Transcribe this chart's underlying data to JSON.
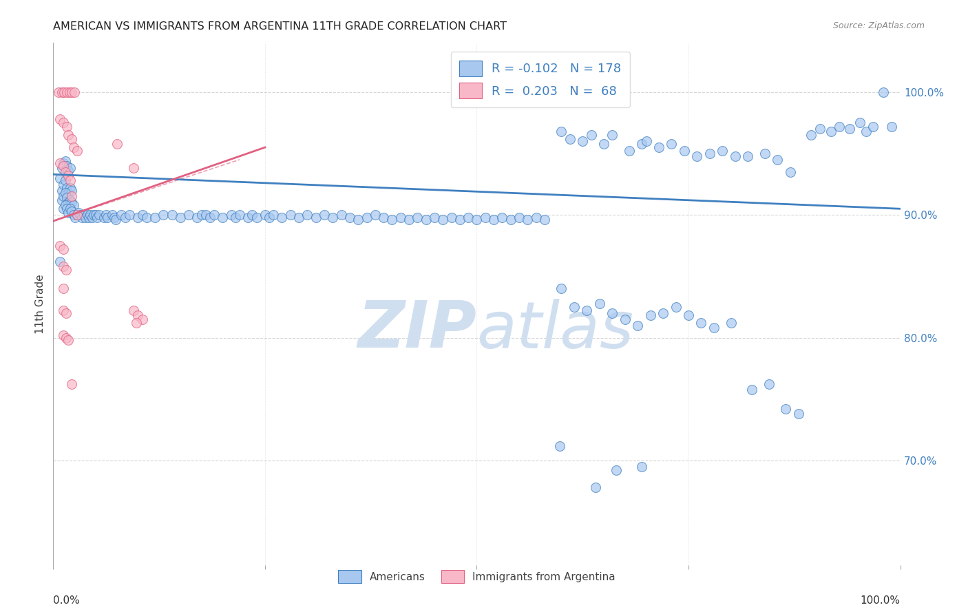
{
  "title": "AMERICAN VS IMMIGRANTS FROM ARGENTINA 11TH GRADE CORRELATION CHART",
  "source": "Source: ZipAtlas.com",
  "ylabel": "11th Grade",
  "r_american": -0.102,
  "n_american": 178,
  "r_argentina": 0.203,
  "n_argentina": 68,
  "ytick_labels": [
    "100.0%",
    "90.0%",
    "80.0%",
    "70.0%"
  ],
  "ytick_values": [
    1.0,
    0.9,
    0.8,
    0.7
  ],
  "xlim": [
    0.0,
    1.0
  ],
  "ylim": [
    0.615,
    1.04
  ],
  "background_color": "#ffffff",
  "blue_color": "#a8c8f0",
  "pink_color": "#f8b8c8",
  "blue_line_color": "#4080c0",
  "pink_line_color": "#e06080",
  "watermark_color": "#d0dff0",
  "grid_color": "#cccccc",
  "legend_r_color": "#4080c0",
  "blue_trend": [
    0.0,
    1.0,
    0.933,
    0.905
  ],
  "pink_trend": [
    0.0,
    0.25,
    0.895,
    0.955
  ],
  "pink_trend_dashed": [
    0.0,
    0.22,
    0.895,
    0.945
  ],
  "blue_scatter": [
    [
      0.008,
      0.93
    ],
    [
      0.01,
      0.938
    ],
    [
      0.012,
      0.942
    ],
    [
      0.014,
      0.944
    ],
    [
      0.016,
      0.94
    ],
    [
      0.018,
      0.936
    ],
    [
      0.02,
      0.938
    ],
    [
      0.01,
      0.92
    ],
    [
      0.012,
      0.925
    ],
    [
      0.014,
      0.928
    ],
    [
      0.016,
      0.922
    ],
    [
      0.018,
      0.918
    ],
    [
      0.02,
      0.922
    ],
    [
      0.022,
      0.92
    ],
    [
      0.01,
      0.912
    ],
    [
      0.012,
      0.915
    ],
    [
      0.014,
      0.918
    ],
    [
      0.016,
      0.914
    ],
    [
      0.018,
      0.91
    ],
    [
      0.02,
      0.912
    ],
    [
      0.022,
      0.91
    ],
    [
      0.024,
      0.908
    ],
    [
      0.012,
      0.905
    ],
    [
      0.014,
      0.908
    ],
    [
      0.016,
      0.905
    ],
    [
      0.018,
      0.902
    ],
    [
      0.02,
      0.905
    ],
    [
      0.022,
      0.903
    ],
    [
      0.024,
      0.9
    ],
    [
      0.026,
      0.898
    ],
    [
      0.028,
      0.9
    ],
    [
      0.03,
      0.902
    ],
    [
      0.032,
      0.9
    ],
    [
      0.034,
      0.898
    ],
    [
      0.036,
      0.9
    ],
    [
      0.038,
      0.898
    ],
    [
      0.04,
      0.9
    ],
    [
      0.042,
      0.898
    ],
    [
      0.044,
      0.9
    ],
    [
      0.046,
      0.898
    ],
    [
      0.048,
      0.9
    ],
    [
      0.05,
      0.9
    ],
    [
      0.052,
      0.898
    ],
    [
      0.054,
      0.9
    ],
    [
      0.06,
      0.898
    ],
    [
      0.062,
      0.9
    ],
    [
      0.064,
      0.898
    ],
    [
      0.07,
      0.9
    ],
    [
      0.072,
      0.898
    ],
    [
      0.074,
      0.896
    ],
    [
      0.08,
      0.9
    ],
    [
      0.085,
      0.898
    ],
    [
      0.09,
      0.9
    ],
    [
      0.1,
      0.898
    ],
    [
      0.105,
      0.9
    ],
    [
      0.11,
      0.898
    ],
    [
      0.12,
      0.898
    ],
    [
      0.13,
      0.9
    ],
    [
      0.14,
      0.9
    ],
    [
      0.15,
      0.898
    ],
    [
      0.16,
      0.9
    ],
    [
      0.17,
      0.898
    ],
    [
      0.175,
      0.9
    ],
    [
      0.18,
      0.9
    ],
    [
      0.185,
      0.898
    ],
    [
      0.19,
      0.9
    ],
    [
      0.2,
      0.898
    ],
    [
      0.21,
      0.9
    ],
    [
      0.215,
      0.898
    ],
    [
      0.22,
      0.9
    ],
    [
      0.23,
      0.898
    ],
    [
      0.235,
      0.9
    ],
    [
      0.24,
      0.898
    ],
    [
      0.25,
      0.9
    ],
    [
      0.255,
      0.898
    ],
    [
      0.26,
      0.9
    ],
    [
      0.27,
      0.898
    ],
    [
      0.28,
      0.9
    ],
    [
      0.29,
      0.898
    ],
    [
      0.3,
      0.9
    ],
    [
      0.31,
      0.898
    ],
    [
      0.32,
      0.9
    ],
    [
      0.33,
      0.898
    ],
    [
      0.34,
      0.9
    ],
    [
      0.35,
      0.898
    ],
    [
      0.36,
      0.896
    ],
    [
      0.37,
      0.898
    ],
    [
      0.38,
      0.9
    ],
    [
      0.39,
      0.898
    ],
    [
      0.4,
      0.896
    ],
    [
      0.41,
      0.898
    ],
    [
      0.42,
      0.896
    ],
    [
      0.43,
      0.898
    ],
    [
      0.44,
      0.896
    ],
    [
      0.45,
      0.898
    ],
    [
      0.46,
      0.896
    ],
    [
      0.47,
      0.898
    ],
    [
      0.48,
      0.896
    ],
    [
      0.49,
      0.898
    ],
    [
      0.5,
      0.896
    ],
    [
      0.51,
      0.898
    ],
    [
      0.52,
      0.896
    ],
    [
      0.53,
      0.898
    ],
    [
      0.54,
      0.896
    ],
    [
      0.55,
      0.898
    ],
    [
      0.56,
      0.896
    ],
    [
      0.57,
      0.898
    ],
    [
      0.58,
      0.896
    ],
    [
      0.6,
      0.968
    ],
    [
      0.61,
      0.962
    ],
    [
      0.625,
      0.96
    ],
    [
      0.635,
      0.965
    ],
    [
      0.65,
      0.958
    ],
    [
      0.66,
      0.965
    ],
    [
      0.68,
      0.952
    ],
    [
      0.695,
      0.958
    ],
    [
      0.7,
      0.96
    ],
    [
      0.715,
      0.955
    ],
    [
      0.73,
      0.958
    ],
    [
      0.745,
      0.952
    ],
    [
      0.76,
      0.948
    ],
    [
      0.775,
      0.95
    ],
    [
      0.79,
      0.952
    ],
    [
      0.805,
      0.948
    ],
    [
      0.82,
      0.948
    ],
    [
      0.84,
      0.95
    ],
    [
      0.855,
      0.945
    ],
    [
      0.87,
      0.935
    ],
    [
      0.895,
      0.965
    ],
    [
      0.905,
      0.97
    ],
    [
      0.918,
      0.968
    ],
    [
      0.928,
      0.972
    ],
    [
      0.94,
      0.97
    ],
    [
      0.952,
      0.975
    ],
    [
      0.96,
      0.968
    ],
    [
      0.968,
      0.972
    ],
    [
      0.98,
      1.0
    ],
    [
      0.99,
      0.972
    ],
    [
      0.008,
      0.862
    ],
    [
      0.6,
      0.84
    ],
    [
      0.615,
      0.825
    ],
    [
      0.63,
      0.822
    ],
    [
      0.645,
      0.828
    ],
    [
      0.66,
      0.82
    ],
    [
      0.675,
      0.815
    ],
    [
      0.69,
      0.81
    ],
    [
      0.705,
      0.818
    ],
    [
      0.72,
      0.82
    ],
    [
      0.735,
      0.825
    ],
    [
      0.75,
      0.818
    ],
    [
      0.765,
      0.812
    ],
    [
      0.78,
      0.808
    ],
    [
      0.8,
      0.812
    ],
    [
      0.825,
      0.758
    ],
    [
      0.845,
      0.762
    ],
    [
      0.865,
      0.742
    ],
    [
      0.88,
      0.738
    ],
    [
      0.598,
      0.712
    ],
    [
      0.64,
      0.678
    ],
    [
      0.665,
      0.692
    ],
    [
      0.695,
      0.695
    ]
  ],
  "pink_scatter": [
    [
      0.006,
      1.0
    ],
    [
      0.01,
      1.0
    ],
    [
      0.013,
      1.0
    ],
    [
      0.016,
      1.0
    ],
    [
      0.019,
      1.0
    ],
    [
      0.022,
      1.0
    ],
    [
      0.025,
      1.0
    ],
    [
      0.008,
      0.978
    ],
    [
      0.012,
      0.975
    ],
    [
      0.016,
      0.972
    ],
    [
      0.018,
      0.965
    ],
    [
      0.022,
      0.962
    ],
    [
      0.024,
      0.955
    ],
    [
      0.028,
      0.952
    ],
    [
      0.008,
      0.942
    ],
    [
      0.012,
      0.94
    ],
    [
      0.014,
      0.935
    ],
    [
      0.018,
      0.932
    ],
    [
      0.02,
      0.928
    ],
    [
      0.022,
      0.915
    ],
    [
      0.028,
      0.9
    ],
    [
      0.008,
      0.875
    ],
    [
      0.012,
      0.872
    ],
    [
      0.075,
      0.958
    ],
    [
      0.095,
      0.938
    ],
    [
      0.012,
      0.858
    ],
    [
      0.015,
      0.855
    ],
    [
      0.012,
      0.84
    ],
    [
      0.012,
      0.822
    ],
    [
      0.015,
      0.82
    ],
    [
      0.012,
      0.802
    ],
    [
      0.015,
      0.8
    ],
    [
      0.095,
      0.822
    ],
    [
      0.1,
      0.818
    ],
    [
      0.105,
      0.815
    ],
    [
      0.018,
      0.798
    ],
    [
      0.022,
      0.762
    ],
    [
      0.098,
      0.812
    ]
  ]
}
